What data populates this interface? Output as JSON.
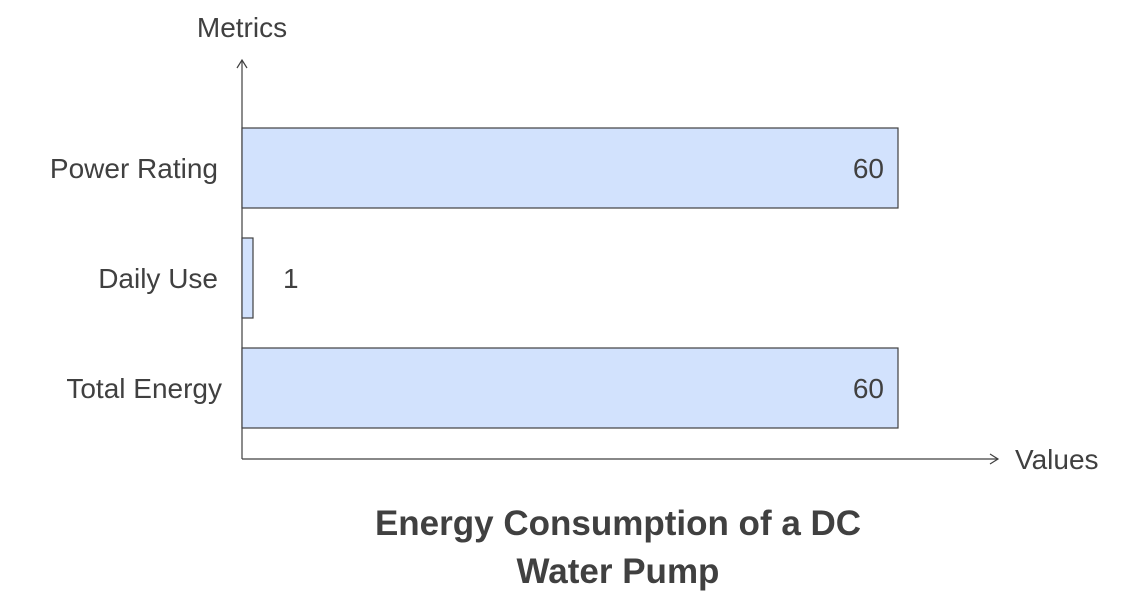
{
  "chart_data": {
    "type": "bar",
    "orientation": "horizontal",
    "title_lines": [
      "Energy Consumption of a DC",
      "Water Pump"
    ],
    "xlabel": "Values",
    "ylabel": "Metrics",
    "categories": [
      "Power Rating",
      "Daily Use",
      "Total Energy"
    ],
    "values": [
      60,
      1,
      60
    ],
    "data_labels": [
      "60",
      "1",
      "60"
    ],
    "xlim": [
      0,
      60
    ],
    "grid": false,
    "legend": "none",
    "colors": {
      "bar_fill": "#d2e2fd",
      "bar_stroke": "#404040",
      "axis": "#404040",
      "text": "#404040"
    }
  }
}
